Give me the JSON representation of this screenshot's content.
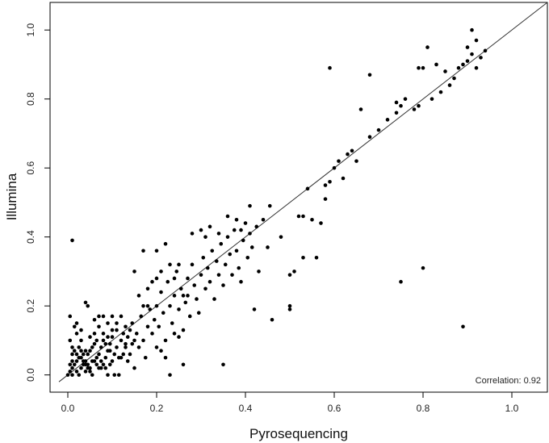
{
  "chart_data": {
    "type": "scatter",
    "title": "",
    "xlabel": "Pyrosequencing",
    "ylabel": "Illumina",
    "xlim": [
      -0.04,
      1.08
    ],
    "ylim": [
      -0.05,
      1.08
    ],
    "x_ticks": [
      0.0,
      0.2,
      0.4,
      0.6,
      0.8,
      1.0
    ],
    "x_tick_labels": [
      "0.0",
      "0.2",
      "0.4",
      "0.6",
      "0.8",
      "1.0"
    ],
    "y_ticks": [
      0.0,
      0.2,
      0.4,
      0.6,
      0.8,
      1.0
    ],
    "y_tick_labels": [
      "0.0",
      "0.2",
      "0.4",
      "0.6",
      "0.8",
      "1.0"
    ],
    "grid": false,
    "legend": "none",
    "annotation": "Correlation: 0.92",
    "fit_line": {
      "slope": 1.0,
      "intercept": 0.0
    },
    "series": [
      {
        "points": [
          [
            0.0,
            0.0
          ],
          [
            0.005,
            0.01
          ],
          [
            0.01,
            0.0
          ],
          [
            0.01,
            0.02
          ],
          [
            0.015,
            0.03
          ],
          [
            0.02,
            0.01
          ],
          [
            0.02,
            0.04
          ],
          [
            0.025,
            0.0
          ],
          [
            0.03,
            0.02
          ],
          [
            0.03,
            0.05
          ],
          [
            0.035,
            0.03
          ],
          [
            0.04,
            0.01
          ],
          [
            0.04,
            0.04
          ],
          [
            0.045,
            0.06
          ],
          [
            0.05,
            0.02
          ],
          [
            0.05,
            0.07
          ],
          [
            0.055,
            0.0
          ],
          [
            0.06,
            0.04
          ],
          [
            0.06,
            0.09
          ],
          [
            0.065,
            0.05
          ],
          [
            0.07,
            0.02
          ],
          [
            0.07,
            0.06
          ],
          [
            0.075,
            0.08
          ],
          [
            0.08,
            0.03
          ],
          [
            0.08,
            0.1
          ],
          [
            0.085,
            0.05
          ],
          [
            0.09,
            0.07
          ],
          [
            0.09,
            0.0
          ],
          [
            0.095,
            0.09
          ],
          [
            0.1,
            0.04
          ],
          [
            0.1,
            0.11
          ],
          [
            0.105,
            0.06
          ],
          [
            0.11,
            0.08
          ],
          [
            0.11,
            0.13
          ],
          [
            0.115,
            0.0
          ],
          [
            0.12,
            0.1
          ],
          [
            0.12,
            0.05
          ],
          [
            0.125,
            0.12
          ],
          [
            0.13,
            0.08
          ],
          [
            0.13,
            0.14
          ],
          [
            0.135,
            0.11
          ],
          [
            0.14,
            0.06
          ],
          [
            0.14,
            0.13
          ],
          [
            0.145,
            0.15
          ],
          [
            0.15,
            0.1
          ],
          [
            0.15,
            0.02
          ],
          [
            0.005,
            0.1
          ],
          [
            0.005,
            0.17
          ],
          [
            0.015,
            0.14
          ],
          [
            0.015,
            0.07
          ],
          [
            0.02,
            0.12
          ],
          [
            0.025,
            0.08
          ],
          [
            0.03,
            0.1
          ],
          [
            0.035,
            0.06
          ],
          [
            0.04,
            0.03
          ],
          [
            0.045,
            0.02
          ],
          [
            0.05,
            0.01
          ],
          [
            0.01,
            0.06
          ],
          [
            0.01,
            0.08
          ],
          [
            0.02,
            0.06
          ],
          [
            0.03,
            0.07
          ],
          [
            0.04,
            0.07
          ],
          [
            0.005,
            0.03
          ],
          [
            0.01,
            0.04
          ],
          [
            0.025,
            0.05
          ],
          [
            0.035,
            0.04
          ],
          [
            0.045,
            0.03
          ],
          [
            0.055,
            0.04
          ],
          [
            0.065,
            0.03
          ],
          [
            0.075,
            0.04
          ],
          [
            0.085,
            0.02
          ],
          [
            0.095,
            0.03
          ],
          [
            0.06,
            0.12
          ],
          [
            0.07,
            0.14
          ],
          [
            0.08,
            0.12
          ],
          [
            0.09,
            0.11
          ],
          [
            0.1,
            0.13
          ],
          [
            0.11,
            0.15
          ],
          [
            0.12,
            0.17
          ],
          [
            0.13,
            0.09
          ],
          [
            0.06,
            0.16
          ],
          [
            0.07,
            0.17
          ],
          [
            0.08,
            0.17
          ],
          [
            0.09,
            0.15
          ],
          [
            0.1,
            0.17
          ],
          [
            0.045,
            0.2
          ],
          [
            0.04,
            0.21
          ],
          [
            0.01,
            0.39
          ],
          [
            0.02,
            0.15
          ],
          [
            0.03,
            0.13
          ],
          [
            0.05,
            0.11
          ],
          [
            0.055,
            0.08
          ],
          [
            0.065,
            0.1
          ],
          [
            0.075,
            0.02
          ],
          [
            0.085,
            0.09
          ],
          [
            0.095,
            0.07
          ],
          [
            0.105,
            0.0
          ],
          [
            0.115,
            0.05
          ],
          [
            0.125,
            0.06
          ],
          [
            0.135,
            0.04
          ],
          [
            0.145,
            0.09
          ],
          [
            0.155,
            0.12
          ],
          [
            0.16,
            0.08
          ],
          [
            0.165,
            0.17
          ],
          [
            0.17,
            0.1
          ],
          [
            0.175,
            0.05
          ],
          [
            0.18,
            0.14
          ],
          [
            0.185,
            0.19
          ],
          [
            0.19,
            0.12
          ],
          [
            0.195,
            0.16
          ],
          [
            0.2,
            0.2
          ],
          [
            0.205,
            0.14
          ],
          [
            0.21,
            0.24
          ],
          [
            0.215,
            0.18
          ],
          [
            0.22,
            0.1
          ],
          [
            0.225,
            0.27
          ],
          [
            0.23,
            0.2
          ],
          [
            0.235,
            0.15
          ],
          [
            0.24,
            0.23
          ],
          [
            0.245,
            0.3
          ],
          [
            0.25,
            0.19
          ],
          [
            0.255,
            0.25
          ],
          [
            0.26,
            0.13
          ],
          [
            0.265,
            0.21
          ],
          [
            0.27,
            0.28
          ],
          [
            0.275,
            0.17
          ],
          [
            0.28,
            0.32
          ],
          [
            0.285,
            0.26
          ],
          [
            0.29,
            0.22
          ],
          [
            0.295,
            0.18
          ],
          [
            0.3,
            0.29
          ],
          [
            0.305,
            0.34
          ],
          [
            0.31,
            0.25
          ],
          [
            0.315,
            0.31
          ],
          [
            0.32,
            0.27
          ],
          [
            0.325,
            0.36
          ],
          [
            0.33,
            0.22
          ],
          [
            0.335,
            0.33
          ],
          [
            0.34,
            0.29
          ],
          [
            0.345,
            0.38
          ],
          [
            0.35,
            0.26
          ],
          [
            0.355,
            0.32
          ],
          [
            0.36,
            0.4
          ],
          [
            0.365,
            0.35
          ],
          [
            0.37,
            0.29
          ],
          [
            0.375,
            0.42
          ],
          [
            0.38,
            0.36
          ],
          [
            0.385,
            0.31
          ],
          [
            0.39,
            0.27
          ],
          [
            0.395,
            0.39
          ],
          [
            0.4,
            0.44
          ],
          [
            0.405,
            0.34
          ],
          [
            0.41,
            0.41
          ],
          [
            0.415,
            0.37
          ],
          [
            0.42,
            0.19
          ],
          [
            0.425,
            0.43
          ],
          [
            0.43,
            0.3
          ],
          [
            0.44,
            0.45
          ],
          [
            0.45,
            0.37
          ],
          [
            0.455,
            0.49
          ],
          [
            0.46,
            0.16
          ],
          [
            0.17,
            0.36
          ],
          [
            0.2,
            0.36
          ],
          [
            0.21,
            0.3
          ],
          [
            0.22,
            0.38
          ],
          [
            0.23,
            0.32
          ],
          [
            0.24,
            0.28
          ],
          [
            0.25,
            0.32
          ],
          [
            0.26,
            0.23
          ],
          [
            0.27,
            0.23
          ],
          [
            0.28,
            0.41
          ],
          [
            0.3,
            0.42
          ],
          [
            0.31,
            0.4
          ],
          [
            0.32,
            0.43
          ],
          [
            0.34,
            0.41
          ],
          [
            0.36,
            0.46
          ],
          [
            0.38,
            0.45
          ],
          [
            0.39,
            0.42
          ],
          [
            0.41,
            0.49
          ],
          [
            0.2,
            0.08
          ],
          [
            0.21,
            0.07
          ],
          [
            0.22,
            0.05
          ],
          [
            0.23,
            0.0
          ],
          [
            0.24,
            0.12
          ],
          [
            0.25,
            0.11
          ],
          [
            0.26,
            0.03
          ],
          [
            0.15,
            0.3
          ],
          [
            0.18,
            0.25
          ],
          [
            0.19,
            0.27
          ],
          [
            0.2,
            0.28
          ],
          [
            0.18,
            0.2
          ],
          [
            0.16,
            0.23
          ],
          [
            0.17,
            0.2
          ],
          [
            0.5,
            0.2
          ],
          [
            0.5,
            0.29
          ],
          [
            0.51,
            0.3
          ],
          [
            0.52,
            0.46
          ],
          [
            0.53,
            0.46
          ],
          [
            0.54,
            0.54
          ],
          [
            0.55,
            0.45
          ],
          [
            0.56,
            0.34
          ],
          [
            0.57,
            0.44
          ],
          [
            0.58,
            0.55
          ],
          [
            0.59,
            0.56
          ],
          [
            0.6,
            0.6
          ],
          [
            0.61,
            0.62
          ],
          [
            0.62,
            0.57
          ],
          [
            0.63,
            0.64
          ],
          [
            0.64,
            0.65
          ],
          [
            0.65,
            0.62
          ],
          [
            0.66,
            0.77
          ],
          [
            0.68,
            0.69
          ],
          [
            0.7,
            0.71
          ],
          [
            0.72,
            0.74
          ],
          [
            0.74,
            0.76
          ],
          [
            0.74,
            0.79
          ],
          [
            0.75,
            0.78
          ],
          [
            0.76,
            0.8
          ],
          [
            0.78,
            0.77
          ],
          [
            0.79,
            0.78
          ],
          [
            0.8,
            0.89
          ],
          [
            0.81,
            0.95
          ],
          [
            0.82,
            0.8
          ],
          [
            0.83,
            0.9
          ],
          [
            0.84,
            0.82
          ],
          [
            0.85,
            0.88
          ],
          [
            0.86,
            0.84
          ],
          [
            0.87,
            0.86
          ],
          [
            0.88,
            0.89
          ],
          [
            0.89,
            0.9
          ],
          [
            0.9,
            0.91
          ],
          [
            0.9,
            0.95
          ],
          [
            0.91,
            0.93
          ],
          [
            0.91,
            1.0
          ],
          [
            0.92,
            0.97
          ],
          [
            0.92,
            0.89
          ],
          [
            0.93,
            0.92
          ],
          [
            0.94,
            0.94
          ],
          [
            0.59,
            0.89
          ],
          [
            0.68,
            0.87
          ],
          [
            0.79,
            0.89
          ],
          [
            0.53,
            0.34
          ],
          [
            0.58,
            0.51
          ],
          [
            0.75,
            0.27
          ],
          [
            0.8,
            0.31
          ],
          [
            0.89,
            0.14
          ],
          [
            0.35,
            0.03
          ],
          [
            0.5,
            0.19
          ],
          [
            0.48,
            0.4
          ]
        ]
      }
    ]
  }
}
